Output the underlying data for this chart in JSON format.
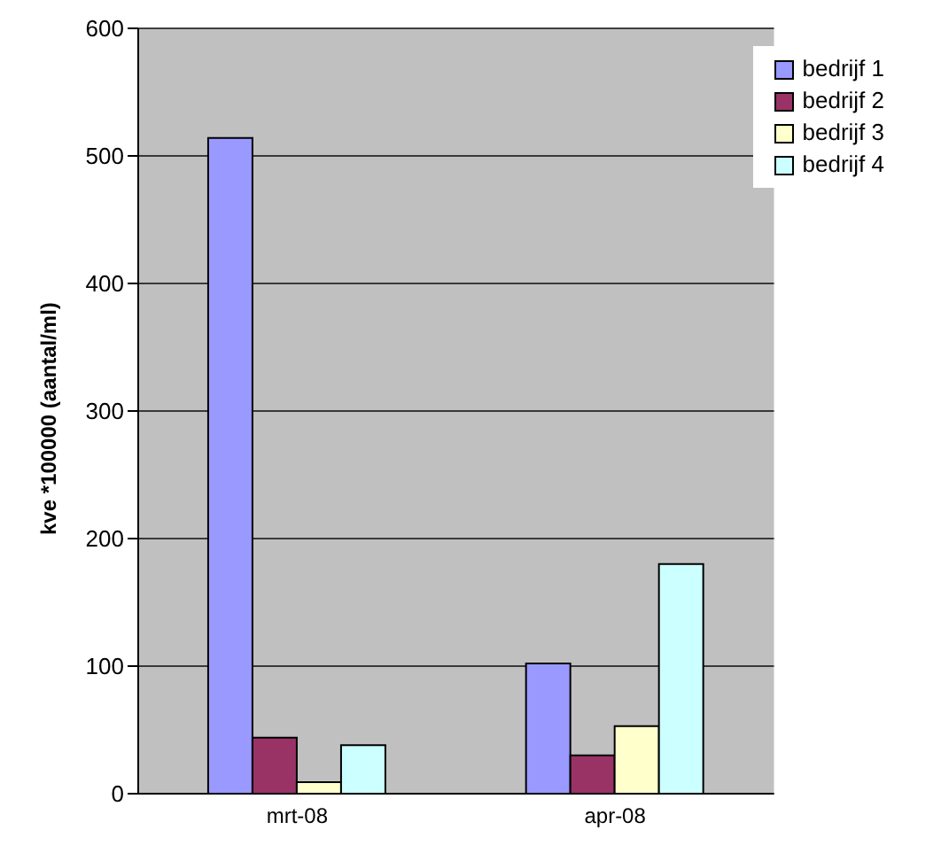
{
  "chart_data": {
    "type": "bar",
    "ylabel": "kve *100000 (aantal/ml)",
    "categories": [
      "mrt-08",
      "apr-08"
    ],
    "series": [
      {
        "name": "bedrijf 1",
        "color": "#9999ff",
        "values": [
          514,
          102
        ]
      },
      {
        "name": "bedrijf 2",
        "color": "#993366",
        "values": [
          44,
          30
        ]
      },
      {
        "name": "bedrijf 3",
        "color": "#ffffcc",
        "values": [
          9,
          53
        ]
      },
      {
        "name": "bedrijf 4",
        "color": "#ccffff",
        "values": [
          38,
          180
        ]
      }
    ],
    "ylim": [
      0,
      600
    ],
    "yticks": [
      0,
      100,
      200,
      300,
      400,
      500,
      600
    ],
    "grid": "y",
    "legend": "top right"
  }
}
